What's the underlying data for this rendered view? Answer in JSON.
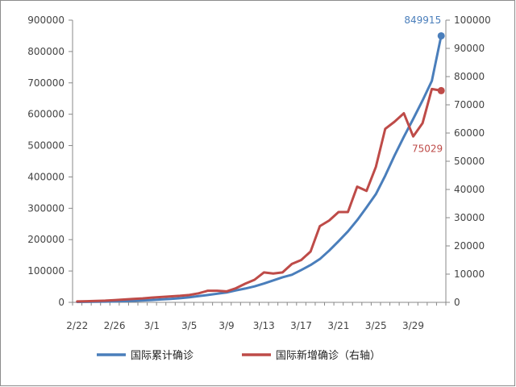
{
  "chart_data": {
    "type": "line",
    "title": "",
    "xlabel": "",
    "ylabel": "",
    "x": [
      "2/22",
      "2/23",
      "2/24",
      "2/25",
      "2/26",
      "2/27",
      "2/28",
      "2/29",
      "3/1",
      "3/2",
      "3/3",
      "3/4",
      "3/5",
      "3/6",
      "3/7",
      "3/8",
      "3/9",
      "3/10",
      "3/11",
      "3/12",
      "3/13",
      "3/14",
      "3/15",
      "3/16",
      "3/17",
      "3/18",
      "3/19",
      "3/20",
      "3/21",
      "3/22",
      "3/23",
      "3/24",
      "3/25",
      "3/26",
      "3/27",
      "3/28",
      "3/29",
      "3/30",
      "3/31",
      "4/1"
    ],
    "x_tick_labels": [
      "2/22",
      "2/26",
      "3/1",
      "3/5",
      "3/9",
      "3/13",
      "3/17",
      "3/21",
      "3/25",
      "3/29"
    ],
    "y_left": {
      "range": [
        0,
        900000
      ],
      "ticks": [
        0,
        100000,
        200000,
        300000,
        400000,
        500000,
        600000,
        700000,
        800000,
        900000
      ]
    },
    "y_right": {
      "range": [
        0,
        100000
      ],
      "ticks": [
        0,
        10000,
        20000,
        30000,
        40000,
        50000,
        60000,
        70000,
        80000,
        90000,
        100000
      ]
    },
    "grid": false,
    "legend": "bottom",
    "series": [
      {
        "name": "国际累计确诊",
        "axis": "left",
        "color": "#4a7ebb",
        "values": [
          1400,
          1600,
          2000,
          2400,
          3000,
          3800,
          4800,
          6200,
          7500,
          9300,
          11000,
          13200,
          16000,
          19700,
          23300,
          27500,
          31500,
          38000,
          44000,
          51000,
          60000,
          70000,
          80000,
          88000,
          103000,
          119000,
          138000,
          165000,
          195000,
          226000,
          262000,
          303000,
          345000,
          404000,
          468000,
          528000,
          585000,
          644000,
          706000,
          849915
        ],
        "end_label": "849915"
      },
      {
        "name": "国际新增确诊（右轴）",
        "axis": "right",
        "color": "#be4b48",
        "values": [
          300,
          400,
          500,
          600,
          800,
          1000,
          1200,
          1400,
          1700,
          1900,
          2100,
          2300,
          2600,
          3200,
          4100,
          4100,
          3900,
          5000,
          6600,
          8000,
          10600,
          10200,
          10600,
          13600,
          15000,
          18000,
          27000,
          29000,
          32000,
          32000,
          41000,
          39500,
          48000,
          61500,
          64000,
          67000,
          58800,
          63500,
          75600,
          75029
        ],
        "end_label": "75029"
      }
    ]
  }
}
